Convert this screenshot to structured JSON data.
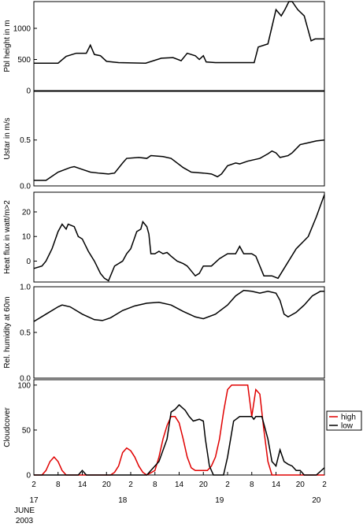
{
  "chart_data": [
    {
      "type": "line",
      "ylabel": "Pbl height in m",
      "xlim": [
        2,
        74
      ],
      "ylim": [
        0,
        1430
      ],
      "yticks": [
        0,
        500,
        1000
      ],
      "series": [
        {
          "color": "#000000",
          "x": [
            2,
            8,
            10,
            12.5,
            15,
            16,
            17,
            18.5,
            20,
            23,
            29.7,
            33.6,
            36.5,
            38.5,
            40,
            42,
            43,
            44,
            44.7,
            47,
            56.6,
            57.6,
            60,
            62,
            63.3,
            64.2,
            65.2,
            66,
            67.4,
            69,
            70.7,
            71.7,
            74
          ],
          "values": [
            440,
            440,
            550,
            600,
            600,
            730,
            580,
            560,
            470,
            450,
            440,
            520,
            530,
            480,
            600,
            560,
            500,
            560,
            460,
            450,
            450,
            700,
            750,
            1300,
            1200,
            1300,
            1430,
            1430,
            1300,
            1200,
            800,
            830,
            830
          ]
        }
      ]
    },
    {
      "type": "line",
      "ylabel": "Ustar in m/s",
      "xlim": [
        2,
        74
      ],
      "ylim": [
        0,
        1.03
      ],
      "yticks": [
        {
          "value": 0,
          "label": "0.0"
        },
        0.5
      ],
      "series": [
        {
          "color": "#000000",
          "x": [
            2,
            5,
            6,
            8,
            11,
            12,
            14,
            16,
            18,
            20.5,
            22,
            24,
            25,
            28,
            30,
            31,
            34,
            36,
            39,
            41,
            44,
            46,
            47.5,
            48.5,
            50,
            52,
            53,
            55,
            58,
            60,
            61,
            62,
            63,
            65,
            66,
            68,
            70,
            72,
            74
          ],
          "values": [
            0.06,
            0.06,
            0.09,
            0.15,
            0.2,
            0.21,
            0.18,
            0.15,
            0.14,
            0.13,
            0.14,
            0.25,
            0.3,
            0.31,
            0.3,
            0.33,
            0.32,
            0.3,
            0.2,
            0.15,
            0.14,
            0.13,
            0.1,
            0.13,
            0.22,
            0.25,
            0.24,
            0.27,
            0.3,
            0.35,
            0.38,
            0.36,
            0.31,
            0.33,
            0.36,
            0.45,
            0.47,
            0.49,
            0.5
          ]
        }
      ]
    },
    {
      "type": "line",
      "ylabel": "Heat flux in watt/m>2",
      "xlim": [
        2,
        74
      ],
      "ylim": [
        -8.5,
        28
      ],
      "yticks": [
        0,
        10,
        20
      ],
      "series": [
        {
          "color": "#000000",
          "x": [
            2,
            4,
            5,
            6.5,
            8,
            9,
            10,
            10.5,
            12,
            13,
            14,
            15.5,
            17,
            18.5,
            19.5,
            20.5,
            22,
            24,
            25,
            26,
            27.5,
            28.5,
            29,
            30,
            30.5,
            31,
            32,
            33,
            34,
            35,
            36,
            37.5,
            39,
            40,
            41,
            42,
            43,
            44,
            46,
            48,
            50,
            52,
            53,
            54,
            56,
            57,
            59,
            61,
            62.5,
            64,
            67,
            70,
            72,
            74
          ],
          "values": [
            -3,
            -2,
            0,
            5,
            12,
            15,
            13,
            15,
            14,
            10,
            9,
            4,
            0,
            -5,
            -7,
            -8,
            -2,
            0,
            3,
            5,
            12,
            13,
            16,
            14,
            11,
            3,
            3,
            4,
            3,
            3.5,
            2,
            0,
            -1,
            -2,
            -4,
            -6,
            -5,
            -2,
            -2,
            1,
            3,
            3,
            6,
            3,
            3,
            2,
            -6,
            -6,
            -7,
            -3,
            5,
            10,
            18,
            27
          ]
        }
      ]
    },
    {
      "type": "line",
      "ylabel": "Rel. humidity at 60m",
      "xlim": [
        2,
        74
      ],
      "ylim": [
        0,
        1.0
      ],
      "yticks": [
        {
          "value": 0,
          "label": "0.0"
        },
        0.5,
        {
          "value": 1,
          "label": "1.0"
        }
      ],
      "series": [
        {
          "color": "#000000",
          "x": [
            2,
            5,
            8,
            9,
            11,
            14,
            17,
            19,
            21,
            24,
            27,
            30,
            33,
            36,
            39,
            42,
            44,
            47,
            50,
            52,
            54,
            56,
            58,
            60,
            62,
            63,
            64,
            65,
            67,
            69,
            71,
            73,
            74
          ],
          "values": [
            0.62,
            0.7,
            0.78,
            0.8,
            0.78,
            0.7,
            0.64,
            0.63,
            0.66,
            0.74,
            0.79,
            0.82,
            0.83,
            0.8,
            0.73,
            0.67,
            0.65,
            0.7,
            0.8,
            0.9,
            0.96,
            0.95,
            0.93,
            0.95,
            0.93,
            0.85,
            0.7,
            0.67,
            0.72,
            0.8,
            0.9,
            0.95,
            0.95
          ]
        }
      ]
    },
    {
      "type": "line",
      "ylabel": "Cloudcover",
      "xlim": [
        2,
        74
      ],
      "ylim": [
        0,
        106
      ],
      "yticks": [
        0,
        50,
        100
      ],
      "legend": "right",
      "xticks": [
        2,
        8,
        14,
        20,
        {
          "value": 26,
          "label": "2"
        },
        {
          "value": 32,
          "label": "8"
        },
        {
          "value": 38,
          "label": "14"
        },
        {
          "value": 44,
          "label": "20"
        },
        {
          "value": 50,
          "label": "2"
        },
        {
          "value": 56,
          "label": "8"
        },
        {
          "value": 62,
          "label": "14"
        },
        {
          "value": 68,
          "label": "20"
        },
        {
          "value": 74,
          "label": "2"
        }
      ],
      "day_labels": [
        {
          "value": 2,
          "label": "17"
        },
        {
          "value": 24,
          "label": "18"
        },
        {
          "value": 48,
          "label": "19"
        },
        {
          "value": 72,
          "label": "20"
        }
      ],
      "month_label": "JUNE",
      "year_label": "2003",
      "series": [
        {
          "name": "high",
          "color": "#e00000",
          "x": [
            2,
            4,
            5,
            6,
            7,
            8,
            9,
            10,
            21,
            22,
            23,
            24,
            25,
            26,
            27,
            28,
            29,
            30,
            32,
            33,
            34,
            35,
            36,
            37,
            38,
            39,
            40,
            41,
            42,
            45,
            46,
            47,
            48,
            49,
            50,
            51,
            55,
            56,
            57,
            58,
            59,
            60,
            61,
            74
          ],
          "values": [
            0,
            0,
            5,
            15,
            20,
            15,
            5,
            0,
            0,
            3,
            10,
            25,
            30,
            27,
            20,
            10,
            3,
            0,
            5,
            20,
            40,
            55,
            65,
            65,
            58,
            40,
            20,
            8,
            5,
            5,
            10,
            20,
            40,
            70,
            95,
            100,
            100,
            65,
            95,
            90,
            50,
            15,
            0,
            0
          ]
        },
        {
          "name": "low",
          "color": "#000000",
          "x": [
            2,
            13,
            14,
            15,
            30,
            31,
            33,
            35,
            36,
            37,
            38,
            39.5,
            40.5,
            41.5,
            43,
            44,
            44.5,
            45.5,
            46.5,
            49,
            50,
            51.5,
            53,
            56,
            56.5,
            57,
            58.5,
            60,
            61,
            62,
            63,
            64,
            65,
            66,
            67,
            68,
            69,
            72,
            74
          ],
          "values": [
            0,
            0,
            5,
            0,
            0,
            5,
            15,
            40,
            70,
            73,
            78,
            72,
            65,
            60,
            62,
            60,
            40,
            10,
            0,
            0,
            20,
            60,
            65,
            65,
            62,
            65,
            65,
            40,
            15,
            10,
            28,
            15,
            12,
            10,
            5,
            5,
            0,
            0,
            8
          ]
        }
      ]
    }
  ]
}
